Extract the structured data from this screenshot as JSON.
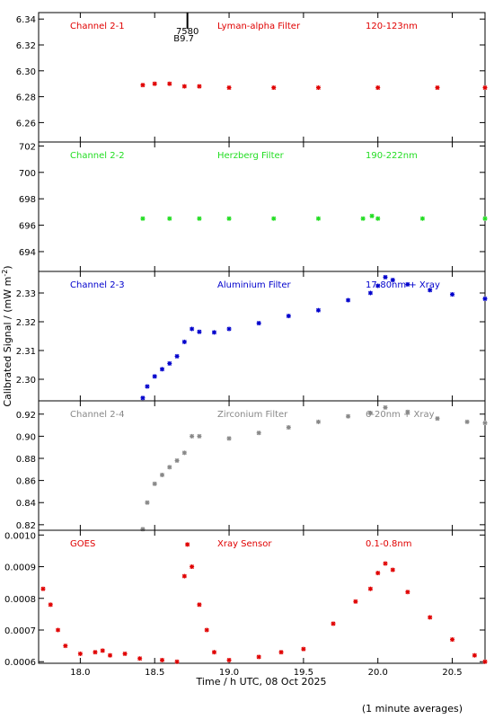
{
  "ylabel": "Calibrated Signal / (mW m",
  "ylabel_sup": "-2",
  "ylabel_end": ")",
  "xlabel": "Time / h UTC, 08 Oct 2025",
  "footnote": "(1 minute averages)",
  "flare_marker": {
    "time": 18.72,
    "class_label": "B9.7",
    "number_label": "7580"
  },
  "chart_data": [
    {
      "type": "scatter",
      "channel": "Channel 2-1",
      "filter": "Lyman-alpha Filter",
      "band": "120-123nm",
      "color": "#e00000",
      "ylim": [
        6.245,
        6.345
      ],
      "yticks": [
        6.26,
        6.28,
        6.3,
        6.32,
        6.34
      ],
      "ytick_labels": [
        "6.26",
        "6.28",
        "6.30",
        "6.32",
        "6.34"
      ],
      "x": [
        18.42,
        18.5,
        18.6,
        18.7,
        18.8,
        19.0,
        19.3,
        19.6,
        20.0,
        20.4,
        20.72
      ],
      "y": [
        6.289,
        6.29,
        6.29,
        6.288,
        6.288,
        6.287,
        6.287,
        6.287,
        6.287,
        6.287,
        6.287
      ]
    },
    {
      "type": "scatter",
      "channel": "Channel 2-2",
      "filter": "Herzberg Filter",
      "band": "190-222nm",
      "color": "#22dd22",
      "ylim": [
        692.5,
        702.3
      ],
      "yticks": [
        694,
        696,
        698,
        700,
        702
      ],
      "ytick_labels": [
        "694",
        "696",
        "698",
        "700",
        "702"
      ],
      "x": [
        18.42,
        18.6,
        18.8,
        19.0,
        19.3,
        19.6,
        19.9,
        19.96,
        20.0,
        20.3,
        20.72
      ],
      "y": [
        696.5,
        696.5,
        696.5,
        696.5,
        696.5,
        696.5,
        696.5,
        696.7,
        696.5,
        696.5,
        696.5
      ]
    },
    {
      "type": "scatter",
      "channel": "Channel 2-3",
      "filter": "Aluminium Filter",
      "band": "17-80nm + Xray",
      "color": "#0000cc",
      "ylim": [
        2.2925,
        2.3375
      ],
      "yticks": [
        2.3,
        2.31,
        2.32,
        2.33
      ],
      "ytick_labels": [
        "2.30",
        "2.31",
        "2.32",
        "2.33"
      ],
      "x": [
        18.42,
        18.45,
        18.5,
        18.55,
        18.6,
        18.65,
        18.7,
        18.75,
        18.8,
        18.9,
        19.0,
        19.2,
        19.4,
        19.6,
        19.8,
        19.95,
        20.0,
        20.05,
        20.1,
        20.2,
        20.35,
        20.5,
        20.72
      ],
      "y": [
        2.2935,
        2.2975,
        2.301,
        2.3035,
        2.3055,
        2.308,
        2.313,
        2.3175,
        2.3165,
        2.3163,
        2.3175,
        2.3195,
        2.322,
        2.324,
        2.3275,
        2.33,
        2.3325,
        2.3355,
        2.3345,
        2.333,
        2.331,
        2.3295,
        2.328
      ]
    },
    {
      "type": "scatter",
      "channel": "Channel 2-4",
      "filter": "Zirconium Filter",
      "band": "6-20nm + Xray",
      "color": "#888888",
      "ylim": [
        0.815,
        0.932
      ],
      "yticks": [
        0.82,
        0.84,
        0.86,
        0.88,
        0.9,
        0.92
      ],
      "ytick_labels": [
        "0.82",
        "0.84",
        "0.86",
        "0.88",
        "0.90",
        "0.92"
      ],
      "x": [
        18.42,
        18.45,
        18.5,
        18.55,
        18.6,
        18.65,
        18.7,
        18.75,
        18.8,
        19.0,
        19.2,
        19.4,
        19.6,
        19.8,
        19.95,
        20.05,
        20.2,
        20.4,
        20.6,
        20.72
      ],
      "y": [
        0.816,
        0.84,
        0.857,
        0.865,
        0.872,
        0.878,
        0.885,
        0.9,
        0.9,
        0.898,
        0.903,
        0.908,
        0.913,
        0.918,
        0.921,
        0.926,
        0.922,
        0.916,
        0.913,
        0.912
      ]
    },
    {
      "type": "scatter",
      "channel": "GOES",
      "filter": "Xray Sensor",
      "band": "0.1-0.8nm",
      "color": "#e00000",
      "ylim": [
        0.000595,
        0.001015
      ],
      "yticks": [
        0.0006,
        0.0007,
        0.0008,
        0.0009,
        0.001
      ],
      "ytick_labels": [
        "0.0006",
        "0.0007",
        "0.0008",
        "0.0009",
        "0.0010"
      ],
      "x": [
        17.75,
        17.8,
        17.85,
        17.9,
        18.0,
        18.1,
        18.15,
        18.2,
        18.3,
        18.4,
        18.55,
        18.65,
        18.7,
        18.72,
        18.75,
        18.8,
        18.85,
        18.9,
        19.0,
        19.2,
        19.35,
        19.5,
        19.7,
        19.85,
        19.95,
        20.0,
        20.05,
        20.1,
        20.2,
        20.35,
        20.5,
        20.65,
        20.72
      ],
      "y": [
        0.00083,
        0.00078,
        0.0007,
        0.00065,
        0.000625,
        0.00063,
        0.000635,
        0.00062,
        0.000625,
        0.00061,
        0.000605,
        0.0006,
        0.00087,
        0.00097,
        0.0009,
        0.00078,
        0.0007,
        0.00063,
        0.000605,
        0.000615,
        0.00063,
        0.00064,
        0.00072,
        0.00079,
        0.00083,
        0.00088,
        0.00091,
        0.00089,
        0.00082,
        0.00074,
        0.00067,
        0.00062,
        0.0006
      ]
    }
  ],
  "x_axis": {
    "xlim": [
      17.72,
      20.72
    ],
    "ticks": [
      18.0,
      18.5,
      19.0,
      19.5,
      20.0,
      20.5
    ],
    "tick_labels": [
      "18.0",
      "18.5",
      "19.0",
      "19.5",
      "20.0",
      "20.5"
    ]
  }
}
